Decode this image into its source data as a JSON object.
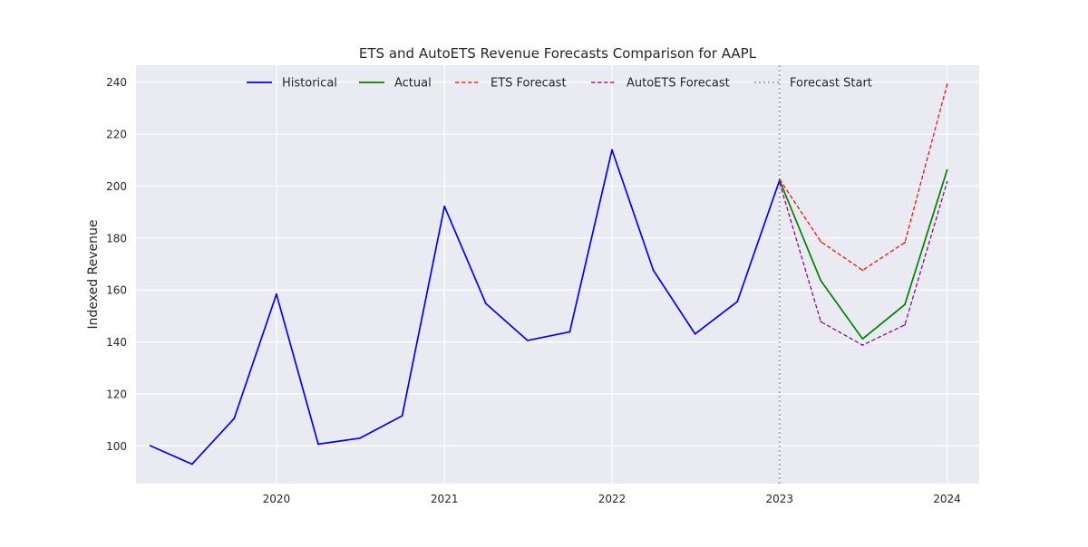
{
  "chart_data": {
    "type": "line",
    "title": "ETS and AutoETS Revenue Forecasts Comparison for AAPL",
    "xlabel": "",
    "ylabel": "Indexed Revenue",
    "x_axis_type": "date",
    "xlim": [
      "2019-03-01",
      "2024-03-11"
    ],
    "ylim": [
      85.5,
      246.5
    ],
    "x_ticks": [
      "2020",
      "2021",
      "2022",
      "2023",
      "2024"
    ],
    "x_tick_dates": [
      "2020-01-01",
      "2021-01-01",
      "2022-01-01",
      "2023-01-01",
      "2024-01-01"
    ],
    "y_ticks": [
      100,
      120,
      140,
      160,
      180,
      200,
      220,
      240
    ],
    "grid": true,
    "legend_position": "top-center",
    "background_color": "#eaeaf2",
    "series": [
      {
        "name": "Historical",
        "color": "#0000ff",
        "dash": "solid",
        "points": [
          {
            "x": "2019-04-01",
            "y": 100.1
          },
          {
            "x": "2019-07-01",
            "y": 93.0
          },
          {
            "x": "2019-10-01",
            "y": 110.6
          },
          {
            "x": "2020-01-01",
            "y": 158.4
          },
          {
            "x": "2020-04-01",
            "y": 100.7
          },
          {
            "x": "2020-07-01",
            "y": 103.0
          },
          {
            "x": "2020-10-01",
            "y": 111.6
          },
          {
            "x": "2021-01-01",
            "y": 192.2
          },
          {
            "x": "2021-04-01",
            "y": 154.8
          },
          {
            "x": "2021-07-01",
            "y": 140.6
          },
          {
            "x": "2021-10-01",
            "y": 143.9
          },
          {
            "x": "2022-01-01",
            "y": 213.9
          },
          {
            "x": "2022-04-01",
            "y": 167.6
          },
          {
            "x": "2022-07-01",
            "y": 143.1
          },
          {
            "x": "2022-10-01",
            "y": 155.5
          },
          {
            "x": "2023-01-01",
            "y": 202.2
          }
        ]
      },
      {
        "name": "Actual",
        "color": "#008000",
        "dash": "solid",
        "points": [
          {
            "x": "2023-01-01",
            "y": 202.2
          },
          {
            "x": "2023-04-01",
            "y": 163.6
          },
          {
            "x": "2023-07-01",
            "y": 141.2
          },
          {
            "x": "2023-10-01",
            "y": 154.4
          },
          {
            "x": "2024-01-01",
            "y": 206.2
          }
        ]
      },
      {
        "name": "ETS Forecast",
        "color": "#ff0000",
        "dash": "dashed",
        "points": [
          {
            "x": "2023-01-01",
            "y": 202.6
          },
          {
            "x": "2023-04-01",
            "y": 178.6
          },
          {
            "x": "2023-07-01",
            "y": 167.6
          },
          {
            "x": "2023-10-01",
            "y": 178.3
          },
          {
            "x": "2024-01-01",
            "y": 239.1
          }
        ]
      },
      {
        "name": "AutoETS Forecast",
        "color": "#800080",
        "dash": "dashed",
        "points": [
          {
            "x": "2023-01-01",
            "y": 201.3
          },
          {
            "x": "2023-04-01",
            "y": 147.8
          },
          {
            "x": "2023-07-01",
            "y": 138.8
          },
          {
            "x": "2023-10-01",
            "y": 146.6
          },
          {
            "x": "2024-01-01",
            "y": 201.6
          }
        ]
      }
    ],
    "vlines": [
      {
        "name": "Forecast Start",
        "x": "2023-01-01",
        "color": "#aaaaaa",
        "dash": "dotted"
      }
    ]
  }
}
